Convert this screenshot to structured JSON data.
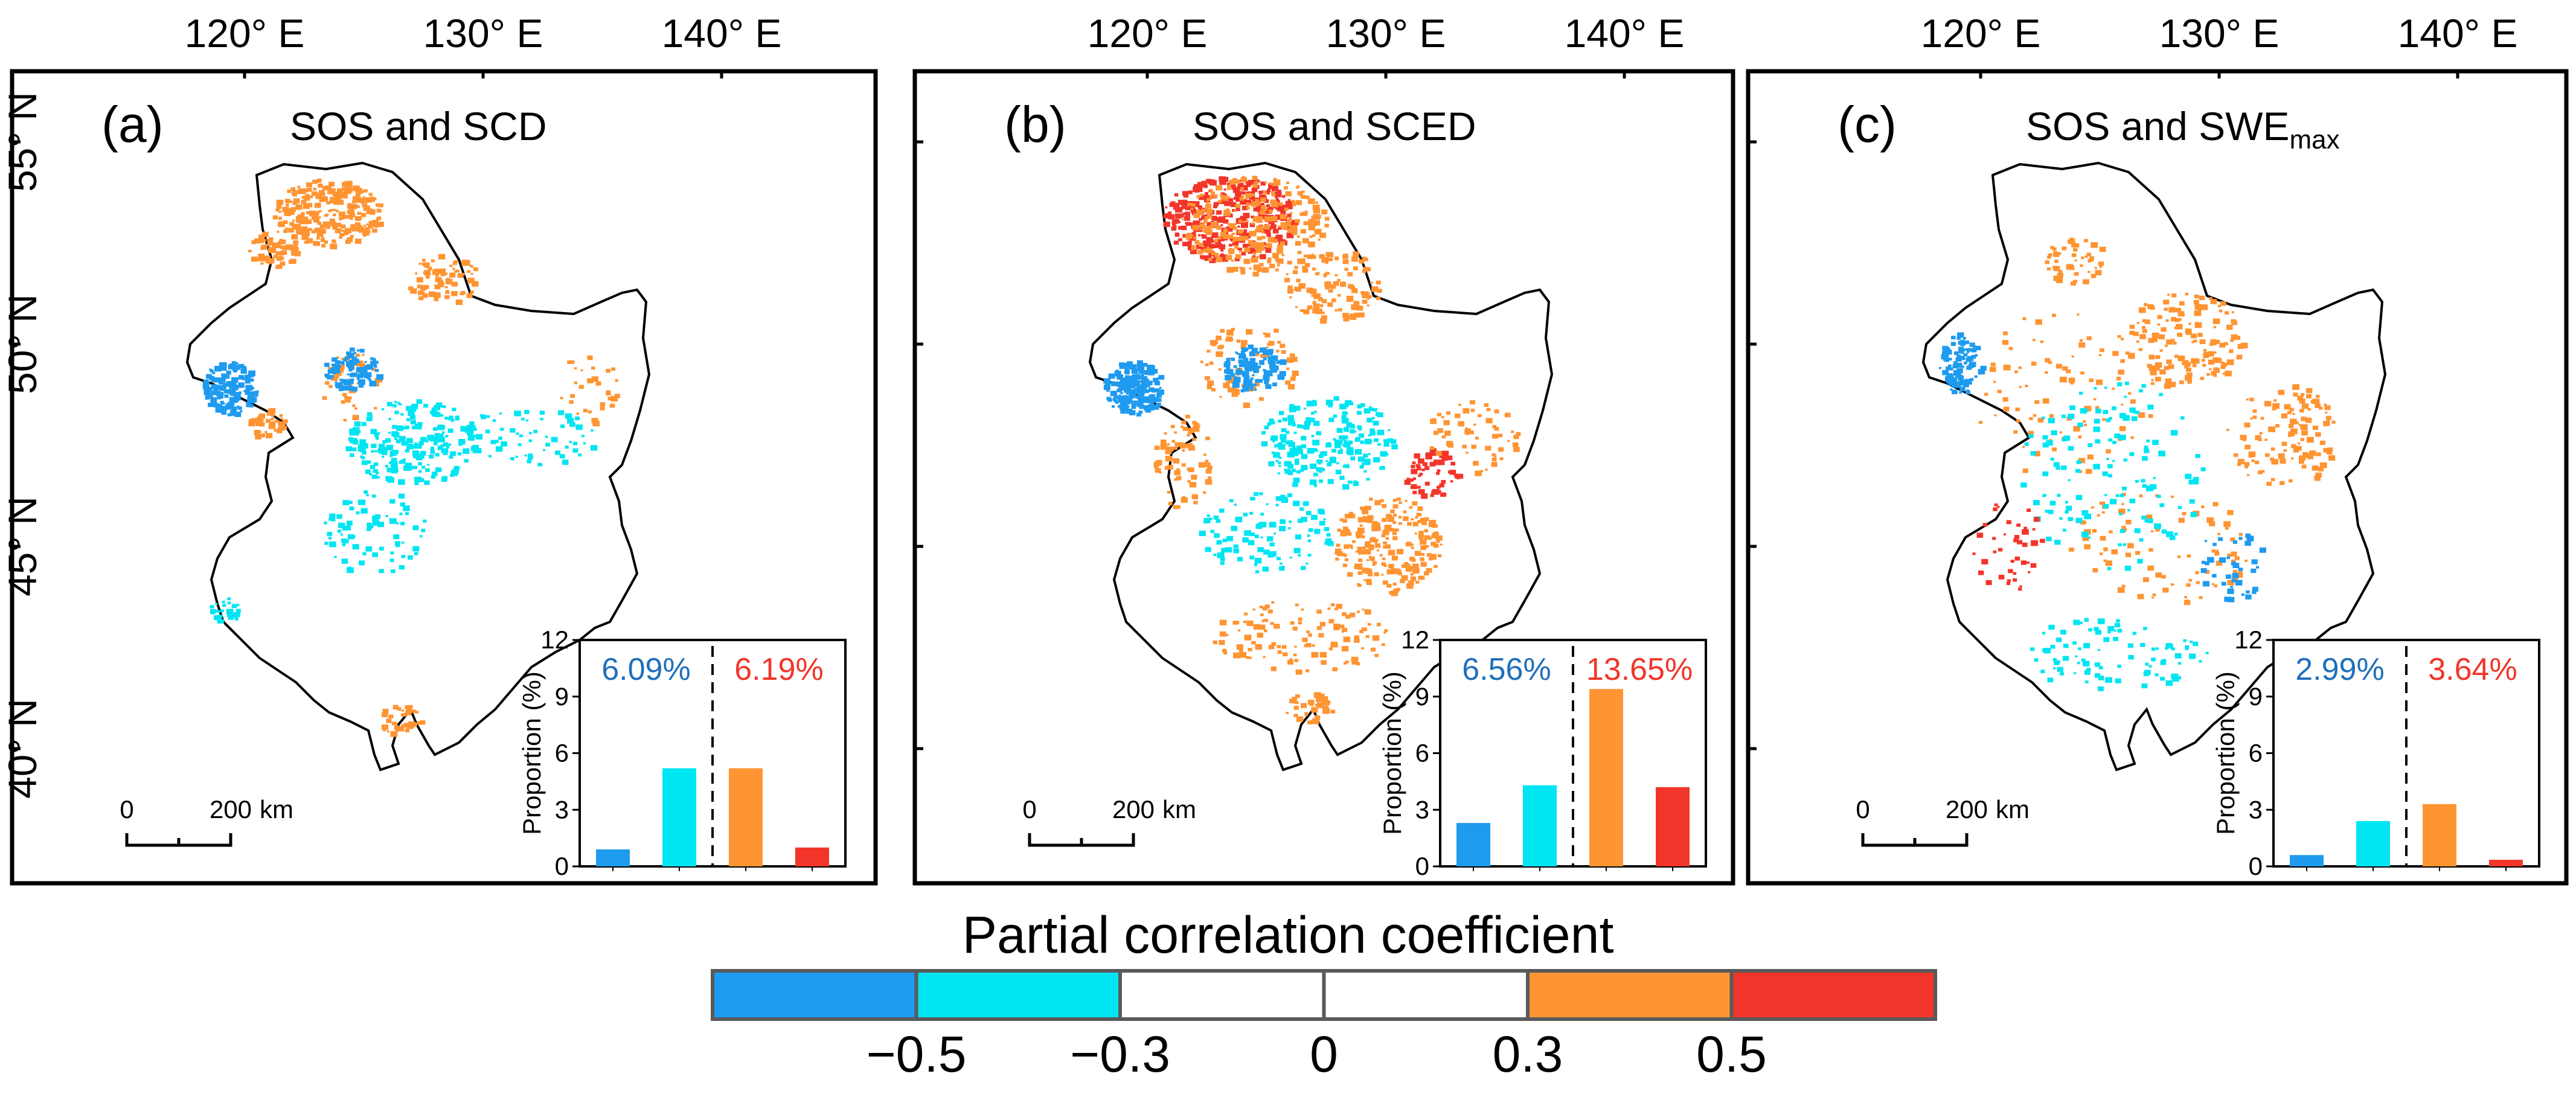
{
  "colors": {
    "strong_negative": "#1e9bef",
    "negative": "#00e5f2",
    "neutral": "#ffffff",
    "positive": "#ff9433",
    "strong_positive": "#f2352a",
    "negative_text": "#1f6fba",
    "positive_text": "#f2352a",
    "frame": "#000000"
  },
  "lon_ticks": [
    "120° E",
    "130° E",
    "140° E"
  ],
  "lat_ticks": [
    "55° N",
    "50° N",
    "45° N",
    "40° N"
  ],
  "scale_bar": {
    "zero": "0",
    "distance": "200",
    "unit": "km"
  },
  "panels": [
    {
      "id": "a",
      "letter": "(a)",
      "title": "SOS and SCD",
      "title_sub": ""
    },
    {
      "id": "b",
      "letter": "(b)",
      "title": "SOS and SCED",
      "title_sub": ""
    },
    {
      "id": "c",
      "letter": "(c)",
      "title": "SOS and SWE",
      "title_sub": "max"
    }
  ],
  "chart_data": [
    {
      "type": "bar",
      "panel": "a",
      "categories": [
        "< -0.5",
        "-0.5 to -0.3",
        "0.3 to 0.5",
        "> 0.5"
      ],
      "values": [
        0.9,
        5.2,
        5.2,
        1.0
      ],
      "ylabel": "Proportion (%)",
      "ylim": [
        0,
        12
      ],
      "yticks": [
        "0",
        "3",
        "6",
        "9",
        "12"
      ],
      "negative_total": "6.09%",
      "positive_total": "6.19%"
    },
    {
      "type": "bar",
      "panel": "b",
      "categories": [
        "< -0.5",
        "-0.5 to -0.3",
        "0.3 to 0.5",
        "> 0.5"
      ],
      "values": [
        2.3,
        4.3,
        9.4,
        4.2
      ],
      "ylabel": "Proportion (%)",
      "ylim": [
        0,
        12
      ],
      "yticks": [
        "0",
        "3",
        "6",
        "9",
        "12"
      ],
      "negative_total": "6.56%",
      "positive_total": "13.65%"
    },
    {
      "type": "bar",
      "panel": "c",
      "categories": [
        "< -0.5",
        "-0.5 to -0.3",
        "0.3 to 0.5",
        "> 0.5"
      ],
      "values": [
        0.6,
        2.4,
        3.3,
        0.35
      ],
      "ylabel": "Proportion (%)",
      "ylim": [
        0,
        12
      ],
      "yticks": [
        "0",
        "3",
        "6",
        "9",
        "12"
      ],
      "negative_total": "2.99%",
      "positive_total": "3.64%"
    }
  ],
  "legend": {
    "title": "Partial correlation coefficient",
    "ticks": [
      "−0.5",
      "−0.3",
      "0",
      "0.3",
      "0.5"
    ]
  }
}
